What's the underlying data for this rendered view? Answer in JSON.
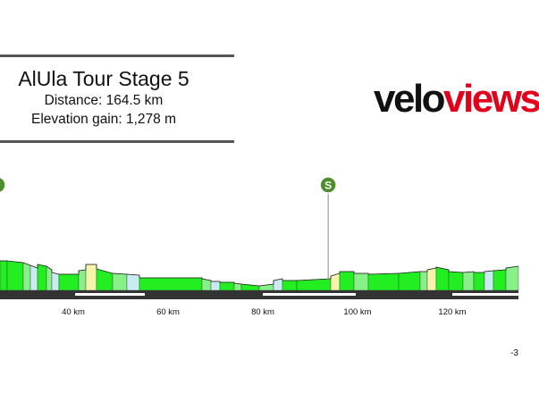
{
  "header": {
    "title": "AlUla Tour Stage 5",
    "distance_label": "Distance: 164.5 km",
    "elevation_label": "Elevation gain: 1,278 m"
  },
  "logo": {
    "part1": "velo",
    "part2": "views",
    "color_part1": "#111111",
    "color_part2": "#e2001a"
  },
  "profile": {
    "sprint_marker": {
      "label": "S",
      "km": 93.8
    },
    "km_axis": [
      {
        "km": 40,
        "label": "40 km"
      },
      {
        "km": 60,
        "label": "60 km"
      },
      {
        "km": 80,
        "label": "80 km"
      },
      {
        "km": 100,
        "label": "100 km"
      },
      {
        "km": 120,
        "label": "120 km"
      }
    ],
    "right_edge_text": "-3",
    "colors": {
      "flat": "#22ee22",
      "light": "#88f088",
      "pale_yellow": "#f4f4aa",
      "pale_blue": "#c8ecf0",
      "base": "#333333",
      "marker": "#4e8e2e"
    }
  }
}
